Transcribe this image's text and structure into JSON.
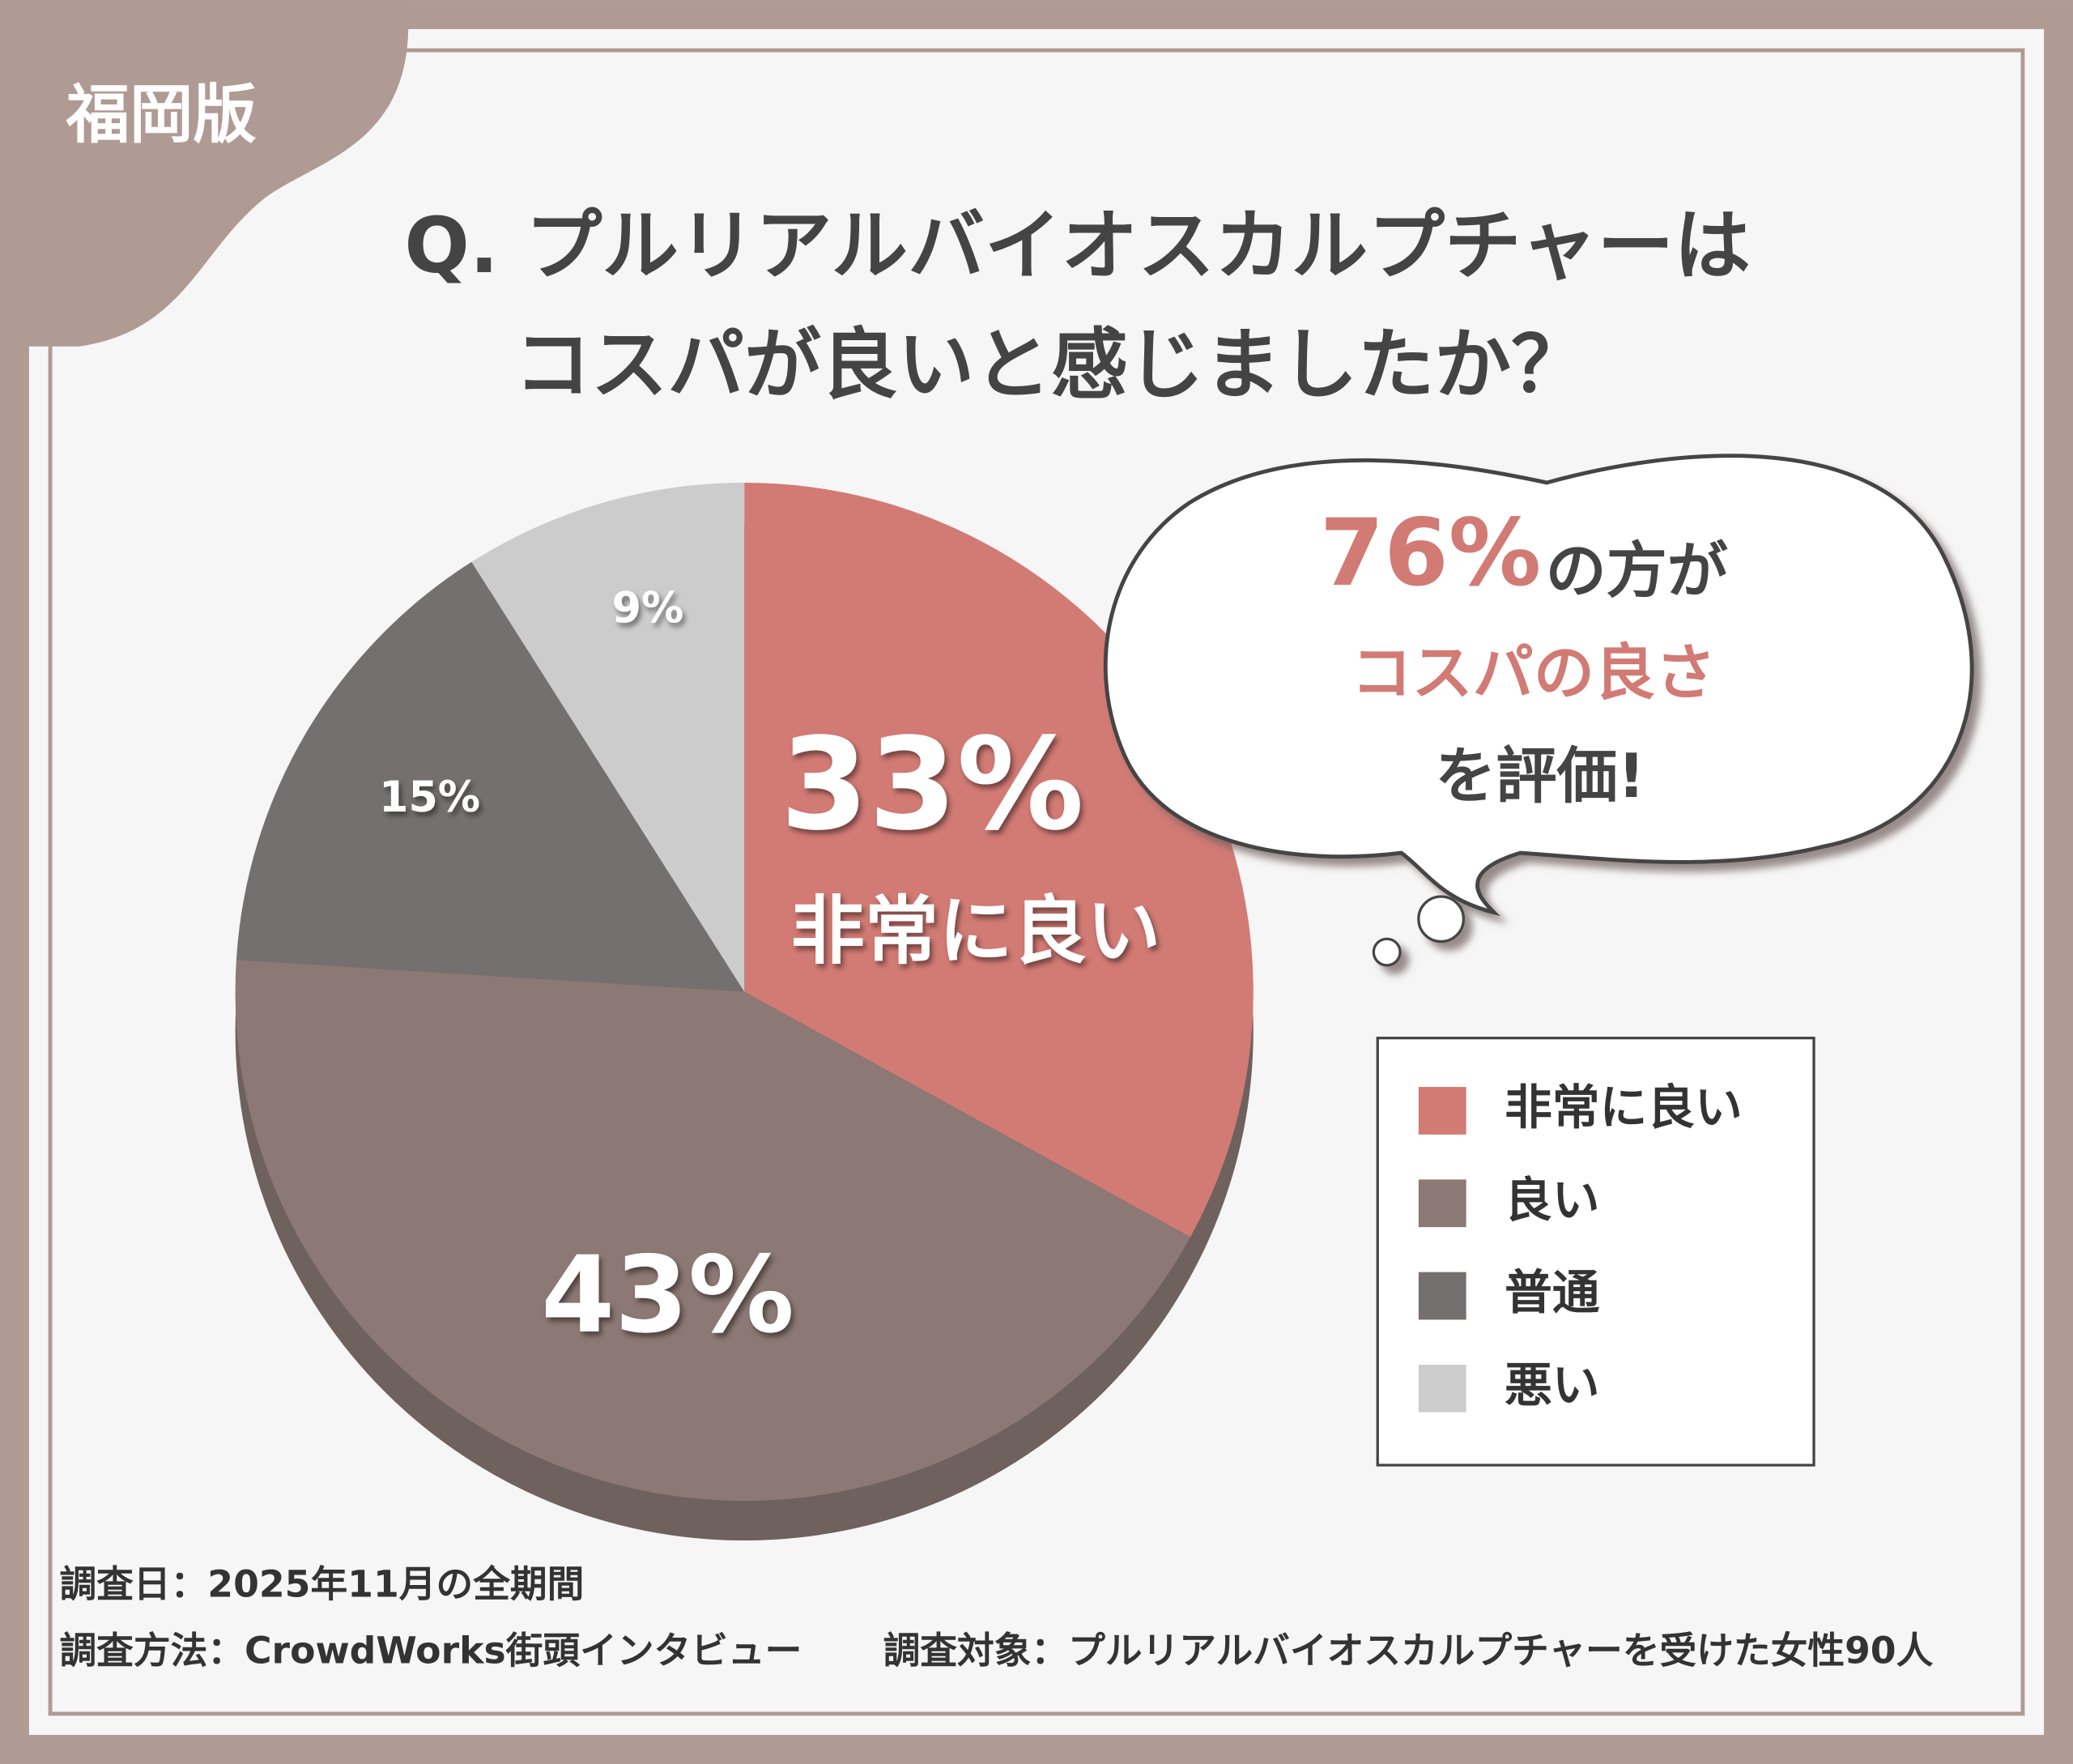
{
  "badge": "福岡版",
  "chart_data": {
    "type": "pie",
    "title": [
      "Q. プルリアルバイオスカルプチャーは",
      "コスパが良いと感じましたか？"
    ],
    "categories": [
      "非常に良い",
      "良い",
      "普通",
      "悪い"
    ],
    "values": [
      33,
      43,
      15,
      9
    ],
    "value_labels": [
      "33%",
      "43%",
      "15%",
      "9%"
    ],
    "colors": [
      "#d27a74",
      "#8c7874",
      "#757070",
      "#cccccc"
    ],
    "legend": "right",
    "callout": [
      "76%",
      "の方が",
      "コスパの良さ",
      "を評価!"
    ],
    "notes": [
      "調査日：2025年11月の全期間",
      "調査方法：CrowdWorks街頭インタビュー",
      "調査対象：プルリアルバイオスカルプチャーを受けた女性90人"
    ]
  }
}
